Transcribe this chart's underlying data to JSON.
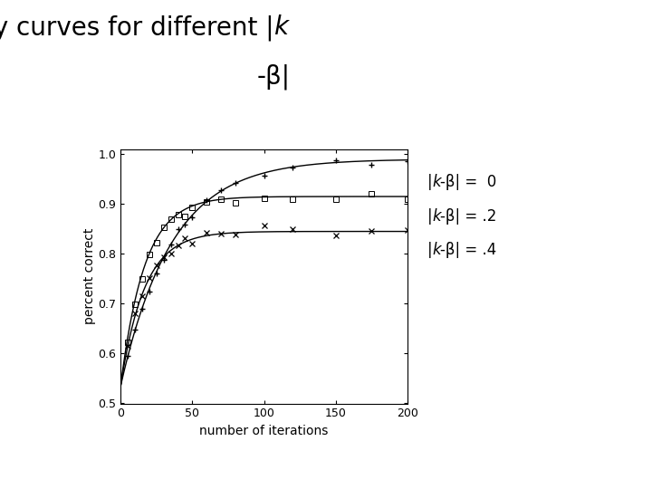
{
  "xlabel": "number of iterations",
  "ylabel": "percent correct",
  "xlim": [
    0,
    200
  ],
  "ylim": [
    0.5,
    1.01
  ],
  "xticks": [
    0,
    50,
    100,
    150,
    200
  ],
  "yticks": [
    0.5,
    0.6,
    0.7,
    0.8,
    0.9,
    1.0
  ],
  "curve0_asymptote": 0.99,
  "curve0_rate": 0.028,
  "curve0_start": 0.535,
  "curve1_asymptote": 0.915,
  "curve1_rate": 0.06,
  "curve1_start": 0.535,
  "curve2_asymptote": 0.845,
  "curve2_rate": 0.06,
  "curve2_start": 0.535,
  "marker_x": [
    5,
    10,
    15,
    20,
    25,
    30,
    35,
    40,
    45,
    50,
    60,
    70,
    80,
    100,
    120,
    150,
    175,
    200
  ],
  "legend_labels": [
    "|k-β| =  0",
    "|k-β| = .2",
    "|k-β| = .4"
  ],
  "background_color": "#ffffff",
  "curve_color": "#000000",
  "title_line1": "Time-accuracy curves for different |",
  "title_line1_k": "k",
  "title_line2": "-β|",
  "title_fontsize": 20,
  "label_fontsize": 10
}
